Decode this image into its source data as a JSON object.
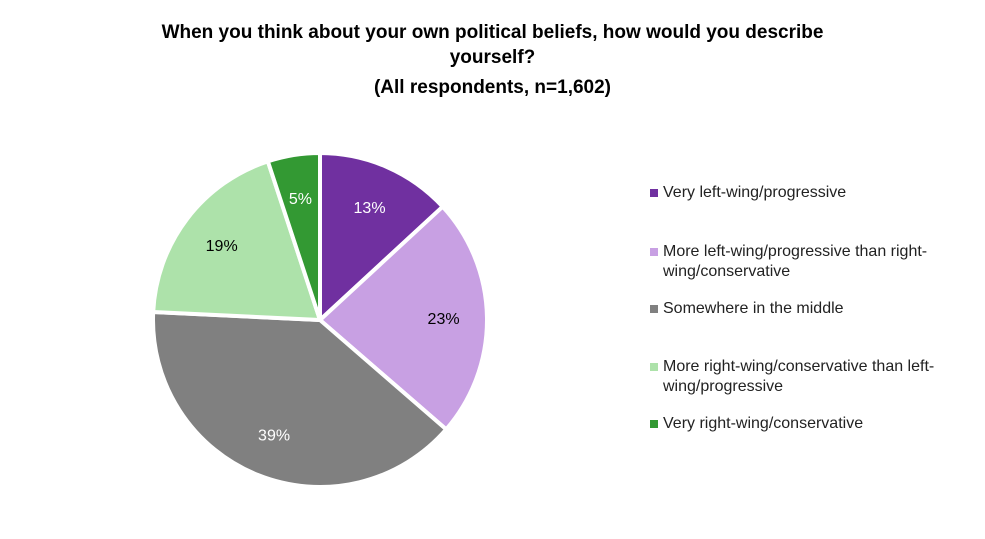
{
  "chart_data": {
    "type": "pie",
    "title": [
      "When you think about your own political beliefs, how would you describe",
      "yourself?",
      "(All respondents, n=1,602)"
    ],
    "categories": [
      "Very left-wing/progressive",
      "More left-wing/progressive than right-wing/conservative",
      "Somewhere in the middle",
      "More right-wing/conservative than left-wing/progressive",
      "Very right-wing/conservative"
    ],
    "legend_lines": [
      [
        "Very left-wing/progressive"
      ],
      [
        "More left-wing/progressive than right-",
        "wing/conservative"
      ],
      [
        "Somewhere in the middle"
      ],
      [
        "More right-wing/conservative than left-",
        "wing/progressive"
      ],
      [
        "Very right-wing/conservative"
      ]
    ],
    "values": [
      13,
      23,
      39,
      19,
      5
    ],
    "labels": [
      "13%",
      "23%",
      "39%",
      "19%",
      "5%"
    ],
    "colors": [
      "#7030A0",
      "#C8A0E3",
      "#808080",
      "#ADE2AA",
      "#339933"
    ],
    "label_colors": [
      "#ffffff",
      "#000000",
      "#ffffff",
      "#000000",
      "#ffffff"
    ],
    "legend_position": "right"
  }
}
